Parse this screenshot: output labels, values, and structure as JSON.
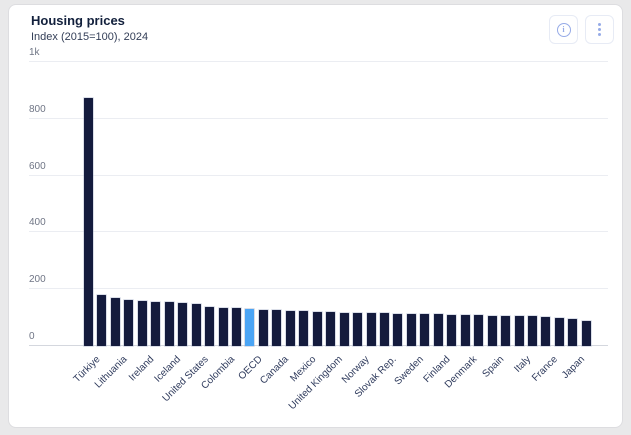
{
  "header": {
    "info_tooltip": "info",
    "menu_tooltip": "more options"
  },
  "colors": {
    "bar": "#141b3d",
    "highlight": "#4ba5f5",
    "icon": "#96abe7",
    "card_background": "#ffffff",
    "page_background": "#e9e9ea"
  },
  "chart_data": {
    "type": "bar",
    "title": "Housing prices",
    "subtitle": "Index (2015=100), 2024",
    "ylabel": "Index (2015=100)",
    "xlabel": "",
    "ylim": [
      0,
      1000
    ],
    "grid": true,
    "legend": false,
    "note": "38 bars sorted descending; only alternating bars carry country labels; OECD bar highlighted blue",
    "yticks": [
      {
        "label": "0",
        "value": 0
      },
      {
        "label": "200",
        "value": 200
      },
      {
        "label": "400",
        "value": 400
      },
      {
        "label": "600",
        "value": 600
      },
      {
        "label": "800",
        "value": 800
      },
      {
        "label": "1k",
        "value": 1000
      }
    ],
    "bars": [
      {
        "label": "Türkiye",
        "value": 875,
        "highlight": false
      },
      {
        "label": "",
        "value": 180,
        "highlight": false
      },
      {
        "label": "Lithuania",
        "value": 168,
        "highlight": false
      },
      {
        "label": "",
        "value": 163,
        "highlight": false
      },
      {
        "label": "Ireland",
        "value": 159,
        "highlight": false
      },
      {
        "label": "",
        "value": 156,
        "highlight": false
      },
      {
        "label": "Iceland",
        "value": 154,
        "highlight": false
      },
      {
        "label": "",
        "value": 152,
        "highlight": false
      },
      {
        "label": "United States",
        "value": 149,
        "highlight": false
      },
      {
        "label": "",
        "value": 138,
        "highlight": false
      },
      {
        "label": "Colombia",
        "value": 135,
        "highlight": false
      },
      {
        "label": "",
        "value": 133,
        "highlight": false
      },
      {
        "label": "OECD",
        "value": 131,
        "highlight": true
      },
      {
        "label": "",
        "value": 128,
        "highlight": false
      },
      {
        "label": "Canada",
        "value": 126,
        "highlight": false
      },
      {
        "label": "",
        "value": 124,
        "highlight": false
      },
      {
        "label": "Mexico",
        "value": 123,
        "highlight": false
      },
      {
        "label": "",
        "value": 121,
        "highlight": false
      },
      {
        "label": "United Kingdom",
        "value": 120,
        "highlight": false
      },
      {
        "label": "",
        "value": 118,
        "highlight": false
      },
      {
        "label": "Norway",
        "value": 117,
        "highlight": false
      },
      {
        "label": "",
        "value": 116,
        "highlight": false
      },
      {
        "label": "Slovak Rep.",
        "value": 115,
        "highlight": false
      },
      {
        "label": "",
        "value": 114,
        "highlight": false
      },
      {
        "label": "Sweden",
        "value": 113,
        "highlight": false
      },
      {
        "label": "",
        "value": 112,
        "highlight": false
      },
      {
        "label": "Finland",
        "value": 111,
        "highlight": false
      },
      {
        "label": "",
        "value": 110,
        "highlight": false
      },
      {
        "label": "Denmark",
        "value": 109,
        "highlight": false
      },
      {
        "label": "",
        "value": 108,
        "highlight": false
      },
      {
        "label": "Spain",
        "value": 107,
        "highlight": false
      },
      {
        "label": "",
        "value": 106,
        "highlight": false
      },
      {
        "label": "Italy",
        "value": 105,
        "highlight": false
      },
      {
        "label": "",
        "value": 104,
        "highlight": false
      },
      {
        "label": "France",
        "value": 103,
        "highlight": false
      },
      {
        "label": "",
        "value": 100,
        "highlight": false
      },
      {
        "label": "Japan",
        "value": 96,
        "highlight": false
      },
      {
        "label": "",
        "value": 88,
        "highlight": false
      }
    ]
  }
}
